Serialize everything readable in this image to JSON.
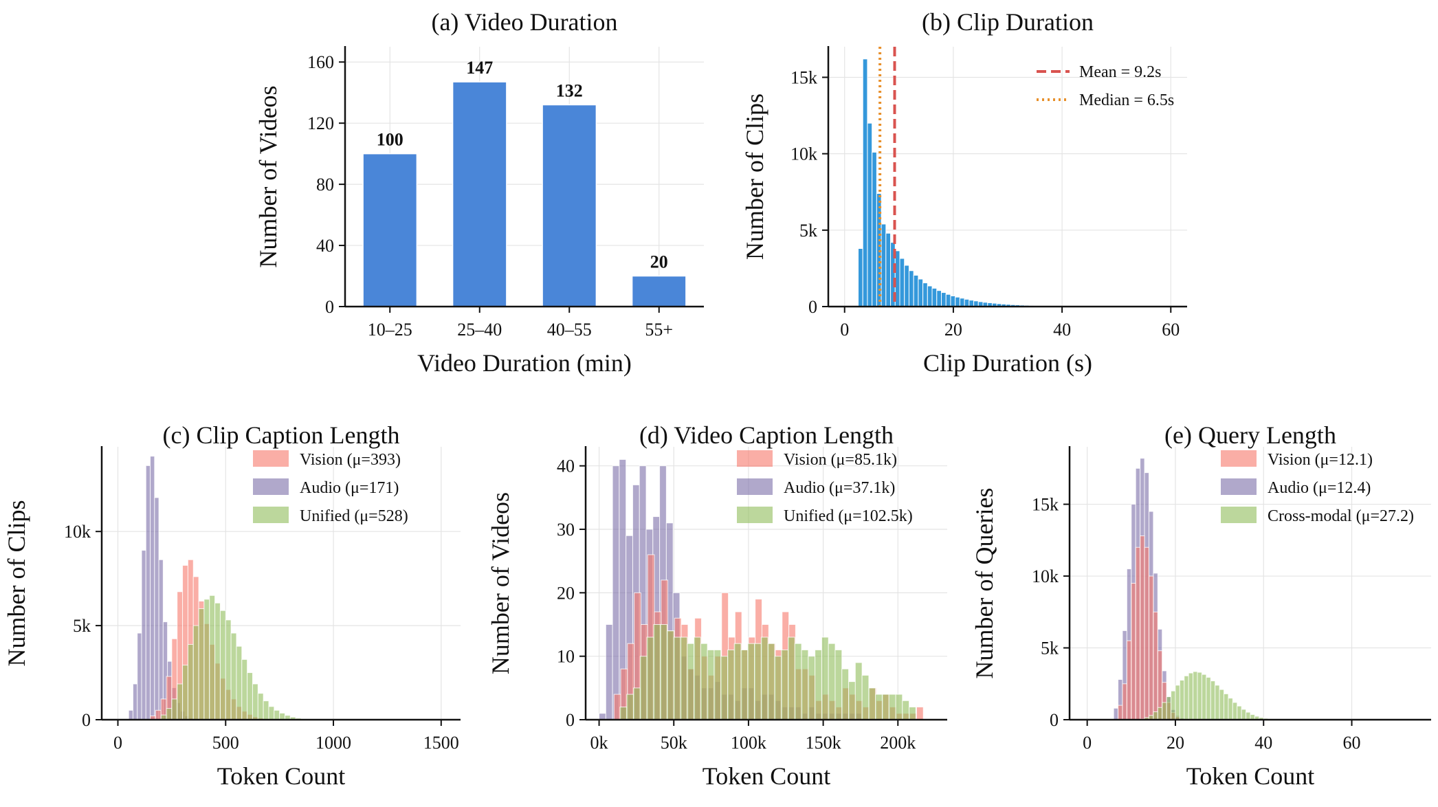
{
  "colors": {
    "bar_blue": "#4a86d8",
    "hist_blue": "#3498db",
    "vision": "#f7786b",
    "audio": "#7b6ea8",
    "unified": "#8fbc5a",
    "mean_line": "#d9534f",
    "median_line": "#e8902b"
  },
  "chart_data": [
    {
      "id": "a",
      "type": "bar",
      "title": "(a) Video Duration",
      "xlabel": "Video Duration (min)",
      "ylabel": "Number of Videos",
      "categories": [
        "10–25",
        "25–40",
        "40–55",
        "55+"
      ],
      "values": [
        100,
        147,
        132,
        20
      ],
      "value_labels": [
        "100",
        "147",
        "132",
        "20"
      ],
      "ylim": [
        0,
        170
      ],
      "yticks": [
        0,
        40,
        80,
        120,
        160
      ],
      "ytick_labels": [
        "0",
        "40",
        "80",
        "120",
        "160"
      ],
      "grid": true
    },
    {
      "id": "b",
      "type": "bar",
      "subtype": "histogram",
      "title": "(b) Clip Duration",
      "xlabel": "Clip Duration (s)",
      "ylabel": "Number of Clips",
      "bin_width": 0.85,
      "bin_start": 2.5,
      "values": [
        3800,
        16200,
        12000,
        10100,
        7400,
        5400,
        4800,
        4200,
        3650,
        3150,
        2700,
        2350,
        2050,
        1800,
        1550,
        1350,
        1200,
        1050,
        920,
        800,
        700,
        620,
        550,
        480,
        420,
        370,
        320,
        280,
        250,
        220,
        190,
        165,
        145,
        125,
        110,
        95,
        80,
        70,
        60,
        50,
        42,
        35,
        28,
        22,
        17,
        13
      ],
      "xlim": [
        -3,
        63
      ],
      "ylim": [
        0,
        17000
      ],
      "xticks": [
        0,
        20,
        40,
        60
      ],
      "xtick_labels": [
        "0",
        "20",
        "40",
        "60"
      ],
      "yticks": [
        0,
        5000,
        10000,
        15000
      ],
      "ytick_labels": [
        "0",
        "5k",
        "10k",
        "15k"
      ],
      "mean": 9.2,
      "median": 6.5,
      "legend": [
        "Mean = 9.2s",
        "Median = 6.5s"
      ],
      "legend_position": "top-right",
      "grid": true
    },
    {
      "id": "c",
      "type": "bar",
      "subtype": "overlapping-histogram",
      "title": "(c) Clip Caption Length",
      "xlabel": "Token Count",
      "ylabel": "Number of Clips",
      "xlim": [
        -75,
        1590
      ],
      "ylim": [
        0,
        14500
      ],
      "xticks": [
        0,
        500,
        1000,
        1500
      ],
      "xtick_labels": [
        "0",
        "500",
        "1000",
        "1500"
      ],
      "yticks": [
        0,
        5000,
        10000
      ],
      "ytick_labels": [
        "0",
        "5k",
        "10k"
      ],
      "legend_position": "top-right",
      "grid": true,
      "series": [
        {
          "name": "Vision (μ=393)",
          "bin_start": 150,
          "bin_width": 25,
          "values": [
            200,
            500,
            1100,
            2300,
            4300,
            6800,
            8200,
            8500,
            7600,
            6300,
            5100,
            4000,
            3000,
            2200,
            1600,
            1100,
            700,
            450,
            280,
            150,
            80,
            40
          ]
        },
        {
          "name": "Audio (μ=171)",
          "bin_start": 50,
          "bin_width": 20,
          "values": [
            500,
            1900,
            4600,
            9000,
            13500,
            14000,
            11800,
            8500,
            5200,
            3100,
            1700,
            900,
            450,
            200,
            80
          ]
        },
        {
          "name": "Unified (μ=528)",
          "bin_start": 200,
          "bin_width": 25,
          "values": [
            250,
            600,
            1100,
            1900,
            2900,
            4000,
            5000,
            5900,
            6400,
            6600,
            6200,
            5800,
            5300,
            4600,
            3900,
            3200,
            2500,
            1900,
            1400,
            1000,
            700,
            500,
            350,
            230,
            140,
            80,
            40,
            20,
            10
          ]
        }
      ]
    },
    {
      "id": "d",
      "type": "bar",
      "subtype": "overlapping-histogram",
      "title": "(d) Video Caption Length",
      "xlabel": "Token Count",
      "ylabel": "Number of Videos",
      "xlim": [
        -9000,
        233000
      ],
      "ylim": [
        0,
        43
      ],
      "xticks": [
        0,
        50000,
        100000,
        150000,
        200000
      ],
      "xtick_labels": [
        "0k",
        "50k",
        "100k",
        "150k",
        "200k"
      ],
      "yticks": [
        0,
        10,
        20,
        30,
        40
      ],
      "ytick_labels": [
        "0",
        "10",
        "20",
        "30",
        "40"
      ],
      "legend_position": "top-right",
      "grid": true,
      "series": [
        {
          "name": "Vision (μ=85.1k)",
          "bin_start": 10000,
          "bin_width": 4500,
          "values": [
            4,
            8,
            12,
            20,
            15,
            26,
            17,
            22,
            14,
            16,
            15,
            8,
            16,
            10,
            7,
            10,
            20,
            13,
            17,
            11,
            13,
            19,
            15,
            12,
            11,
            17,
            15,
            8,
            8,
            7,
            3,
            4,
            3,
            2,
            5,
            4,
            3,
            2,
            5,
            3,
            4,
            2,
            1,
            1,
            1,
            2
          ]
        },
        {
          "name": "Audio (μ=37.1k)",
          "bin_start": 0,
          "bin_width": 4500,
          "values": [
            1,
            15,
            40,
            41,
            29,
            37,
            40,
            30,
            32,
            40,
            31,
            20,
            10,
            8,
            7,
            5,
            5,
            6,
            4,
            4,
            3,
            5,
            5,
            3,
            4,
            4,
            3,
            2,
            2,
            2,
            1,
            2,
            1,
            1,
            1,
            1,
            1,
            1,
            1
          ]
        },
        {
          "name": "Unified (μ=102.5k)",
          "bin_start": 14000,
          "bin_width": 4500,
          "values": [
            2,
            4,
            5,
            10,
            13,
            15,
            15,
            14,
            13,
            13,
            12,
            13,
            12,
            11,
            11,
            10,
            11,
            12,
            11,
            12,
            12,
            13,
            12,
            10,
            11,
            13,
            12,
            11,
            10,
            11,
            13,
            12,
            11,
            8,
            6,
            9,
            7,
            5,
            4,
            4,
            4,
            4,
            3,
            2
          ]
        }
      ]
    },
    {
      "id": "e",
      "type": "bar",
      "subtype": "overlapping-histogram",
      "title": "(e) Query Length",
      "xlabel": "Token Count",
      "ylabel": "Number of Queries",
      "xlim": [
        -4,
        78
      ],
      "ylim": [
        0,
        19000
      ],
      "xticks": [
        0,
        20,
        40,
        60
      ],
      "xtick_labels": [
        "0",
        "20",
        "40",
        "60"
      ],
      "yticks": [
        0,
        5000,
        10000,
        15000
      ],
      "ytick_labels": [
        "0",
        "5k",
        "10k",
        "15k"
      ],
      "legend_position": "top-right",
      "grid": true,
      "series": [
        {
          "name": "Vision (μ=12.1)",
          "bin_start": 7,
          "bin_width": 1,
          "values": [
            1000,
            2500,
            5500,
            9500,
            12000,
            12800,
            12000,
            10000,
            7500,
            4800,
            2600,
            1200,
            500,
            200
          ]
        },
        {
          "name": "Audio (μ=12.4)",
          "bin_start": 6,
          "bin_width": 1,
          "values": [
            800,
            2800,
            6200,
            10500,
            15000,
            17500,
            18200,
            17200,
            14500,
            10200,
            6300,
            3400,
            1600,
            700,
            280,
            100
          ]
        },
        {
          "name": "Cross-modal (μ=27.2)",
          "bin_start": 12,
          "bin_width": 1,
          "values": [
            50,
            150,
            300,
            550,
            850,
            1200,
            1600,
            2000,
            2400,
            2750,
            3050,
            3250,
            3350,
            3300,
            3150,
            2950,
            2700,
            2400,
            2100,
            1800,
            1500,
            1200,
            950,
            720,
            520,
            360,
            240,
            150,
            90,
            50,
            25,
            12
          ]
        }
      ]
    }
  ]
}
